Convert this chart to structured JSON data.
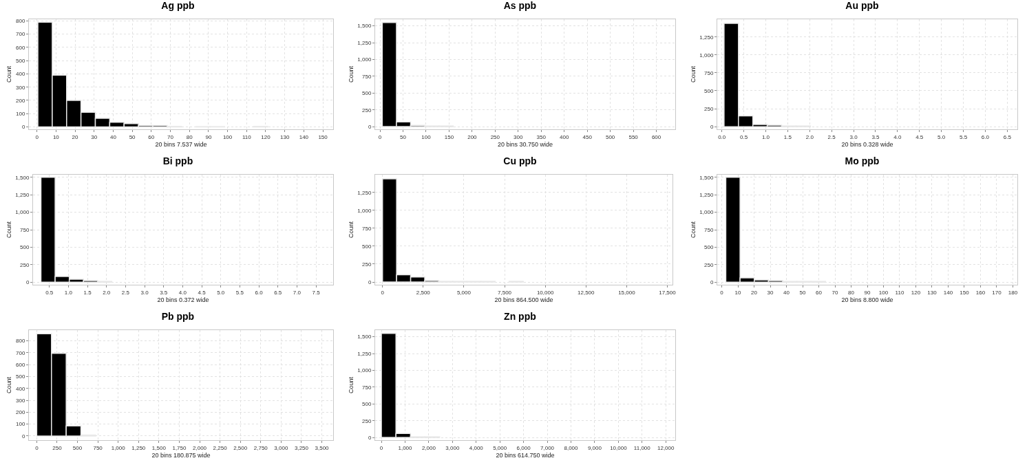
{
  "chart_data": [
    {
      "type": "histogram",
      "title": "Ag ppb",
      "xlabel": "20 bins 7.537 wide",
      "ylabel": "Count",
      "color": "#000000",
      "grid": true,
      "bins": [
        0.5,
        8.037,
        15.574,
        23.111,
        30.648,
        38.185,
        45.722,
        53.259,
        60.796,
        68.333,
        75.87,
        83.407,
        90.944,
        98.481,
        106.018,
        113.555,
        121.092,
        128.629,
        136.166,
        143.703,
        151.24
      ],
      "values": [
        790,
        390,
        200,
        110,
        65,
        35,
        25,
        10,
        10,
        3,
        0,
        2,
        2,
        0,
        0,
        3,
        0,
        0,
        0,
        0
      ],
      "xlim": [
        -4.2,
        155.4
      ],
      "ylim": [
        -18,
        812
      ],
      "xticks": [
        0,
        10,
        20,
        30,
        40,
        50,
        60,
        70,
        80,
        90,
        100,
        110,
        120,
        130,
        140,
        150
      ],
      "yticks": [
        0,
        100,
        200,
        300,
        400,
        500,
        600,
        700,
        800
      ]
    },
    {
      "type": "histogram",
      "title": "As ppb",
      "xlabel": "20 bins 30.750 wide",
      "ylabel": "Count",
      "color": "#000000",
      "grid": true,
      "bins": [
        5,
        35.75,
        66.5,
        97.25,
        128,
        158.75,
        189.5,
        220.25,
        251,
        281.75,
        312.5,
        343.25,
        374,
        404.75,
        435.5,
        466.25,
        497,
        527.75,
        558.5,
        589.25,
        620
      ],
      "values": [
        1550,
        70,
        20,
        10,
        10,
        0,
        0,
        0,
        0,
        0,
        0,
        0,
        0,
        0,
        0,
        0,
        0,
        0,
        0,
        0
      ],
      "xlim": [
        -10.5,
        641
      ],
      "ylim": [
        -40,
        1599
      ],
      "xticks": [
        0,
        50,
        100,
        150,
        200,
        250,
        300,
        350,
        400,
        450,
        500,
        550,
        600
      ],
      "yticks": [
        0,
        250,
        500,
        750,
        {
          "value": 1000,
          "label": "1,000"
        },
        {
          "value": 1250,
          "label": "1,250"
        },
        {
          "value": 1500,
          "label": "1,500"
        }
      ]
    },
    {
      "type": "histogram",
      "title": "Au ppb",
      "xlabel": "20 bins 0.328 wide",
      "ylabel": "Count",
      "color": "#000000",
      "grid": true,
      "bins": [
        0.05,
        0.378,
        0.706,
        1.034,
        1.362,
        1.69,
        2.018,
        2.346,
        2.674,
        3.002,
        3.33,
        3.658,
        3.986,
        4.314,
        4.642,
        4.97,
        5.298,
        5.626,
        5.954,
        6.282,
        6.61
      ],
      "values": [
        1440,
        150,
        30,
        20,
        10,
        10,
        0,
        0,
        0,
        0,
        0,
        0,
        0,
        0,
        0,
        0,
        0,
        0,
        0,
        0
      ],
      "xlim": [
        -0.105,
        6.73
      ],
      "ylim": [
        -37,
        1497
      ],
      "xticks": [
        {
          "value": 0,
          "label": "0.0"
        },
        0.5,
        {
          "value": 1,
          "label": "1.0"
        },
        1.5,
        {
          "value": 2,
          "label": "2.0"
        },
        2.5,
        {
          "value": 3,
          "label": "3.0"
        },
        3.5,
        {
          "value": 4,
          "label": "4.0"
        },
        4.5,
        {
          "value": 5,
          "label": "5.0"
        },
        5.5,
        {
          "value": 6,
          "label": "6.0"
        },
        6.5
      ],
      "yticks": [
        0,
        250,
        500,
        750,
        {
          "value": 1000,
          "label": "1,000"
        },
        {
          "value": 1250,
          "label": "1,250"
        }
      ]
    },
    {
      "type": "histogram",
      "title": "Bi ppb",
      "xlabel": "20 bins 0.372 wide",
      "ylabel": "Count",
      "color": "#000000",
      "grid": true,
      "bins": [
        0.28,
        0.652,
        1.024,
        1.396,
        1.768,
        2.14,
        2.512,
        2.884,
        3.256,
        3.628,
        4,
        4.372,
        4.744,
        5.116,
        5.488,
        5.86,
        6.232,
        6.604,
        6.976,
        7.348,
        7.72
      ],
      "values": [
        1500,
        80,
        40,
        20,
        10,
        0,
        0,
        0,
        0,
        0,
        0,
        0,
        0,
        0,
        0,
        0,
        0,
        0,
        0,
        0
      ],
      "xlim": [
        0.072,
        7.95
      ],
      "ylim": [
        -38,
        1538
      ],
      "xticks": [
        0.5,
        {
          "value": 1,
          "label": "1.0"
        },
        1.5,
        {
          "value": 2,
          "label": "2.0"
        },
        2.5,
        {
          "value": 3,
          "label": "3.0"
        },
        3.5,
        {
          "value": 4,
          "label": "4.0"
        },
        4.5,
        {
          "value": 5,
          "label": "5.0"
        },
        5.5,
        {
          "value": 6,
          "label": "6.0"
        },
        6.5,
        {
          "value": 7,
          "label": "7.0"
        },
        7.5
      ],
      "yticks": [
        0,
        250,
        500,
        750,
        {
          "value": 1000,
          "label": "1,000"
        },
        {
          "value": 1250,
          "label": "1,250"
        },
        {
          "value": 1500,
          "label": "1,500"
        }
      ]
    },
    {
      "type": "histogram",
      "title": "Cu ppb",
      "xlabel": "20 bins 864.500 wide",
      "ylabel": "Count",
      "color": "#000000",
      "grid": true,
      "bins": [
        0,
        864.5,
        1729,
        2593.5,
        3458,
        4322.5,
        5187,
        6051.5,
        6916,
        7780.5,
        8645,
        9509.5,
        10374,
        11238.5,
        12103,
        12967.5,
        13832,
        14696.5,
        15561,
        16425.5,
        17290
      ],
      "values": [
        1440,
        100,
        70,
        20,
        10,
        10,
        10,
        10,
        0,
        10,
        0,
        0,
        0,
        0,
        0,
        0,
        0,
        0,
        0,
        0
      ],
      "xlim": [
        -453,
        17818
      ],
      "ylim": [
        -38,
        1497
      ],
      "xticks": [
        0,
        {
          "value": 2500,
          "label": "2,500"
        },
        {
          "value": 5000,
          "label": "5,000"
        },
        {
          "value": 7500,
          "label": "7,500"
        },
        {
          "value": 10000,
          "label": "10,000"
        },
        {
          "value": 12500,
          "label": "12,500"
        },
        {
          "value": 15000,
          "label": "15,000"
        },
        {
          "value": 17500,
          "label": "17,500"
        }
      ],
      "yticks": [
        0,
        250,
        500,
        750,
        {
          "value": 1000,
          "label": "1,000"
        },
        {
          "value": 1250,
          "label": "1,250"
        }
      ]
    },
    {
      "type": "histogram",
      "title": "Mo ppb",
      "xlabel": "20 bins 8.800 wide",
      "ylabel": "Count",
      "color": "#000000",
      "grid": true,
      "bins": [
        2.5,
        11.3,
        20.1,
        28.9,
        37.7,
        46.5,
        55.3,
        64.1,
        72.9,
        81.7,
        90.5,
        99.3,
        108.1,
        116.9,
        125.7,
        134.5,
        143.3,
        152.1,
        160.9,
        169.7,
        178.5
      ],
      "values": [
        1500,
        60,
        30,
        20,
        10,
        10,
        10,
        0,
        0,
        0,
        0,
        0,
        0,
        0,
        0,
        0,
        0,
        0,
        0,
        0
      ],
      "xlim": [
        -2.8,
        182.8
      ],
      "ylim": [
        -38,
        1538
      ],
      "xticks": [
        0,
        10,
        20,
        30,
        40,
        50,
        60,
        70,
        80,
        90,
        100,
        110,
        120,
        130,
        140,
        150,
        160,
        170,
        180
      ],
      "yticks": [
        0,
        250,
        500,
        750,
        {
          "value": 1000,
          "label": "1,000"
        },
        {
          "value": 1250,
          "label": "1,250"
        },
        {
          "value": 1500,
          "label": "1,500"
        }
      ]
    },
    {
      "type": "histogram",
      "title": "Pb ppb",
      "xlabel": "20 bins 180.875 wide",
      "ylabel": "Count",
      "color": "#000000",
      "grid": true,
      "bins": [
        0,
        180.875,
        361.75,
        542.625,
        723.5,
        904.375,
        1085.25,
        1266.125,
        1447,
        1627.875,
        1808.75,
        1989.625,
        2170.5,
        2351.375,
        2532.25,
        2713.125,
        2894,
        3074.875,
        3255.75,
        3436.625,
        3617.5
      ],
      "values": [
        860,
        695,
        85,
        8,
        0,
        0,
        0,
        0,
        0,
        0,
        0,
        0,
        0,
        0,
        0,
        0,
        0,
        0,
        0,
        0
      ],
      "xlim": [
        -96,
        3639
      ],
      "ylim": [
        -35,
        890
      ],
      "xticks": [
        0,
        250,
        500,
        750,
        {
          "value": 1000,
          "label": "1,000"
        },
        {
          "value": 1250,
          "label": "1,250"
        },
        {
          "value": 1500,
          "label": "1,500"
        },
        {
          "value": 1750,
          "label": "1,750"
        },
        {
          "value": 2000,
          "label": "2,000"
        },
        {
          "value": 2250,
          "label": "2,250"
        },
        {
          "value": 2500,
          "label": "2,500"
        },
        {
          "value": 2750,
          "label": "2,750"
        },
        {
          "value": 3000,
          "label": "3,000"
        },
        {
          "value": 3250,
          "label": "3,250"
        },
        {
          "value": 3500,
          "label": "3,500"
        }
      ],
      "yticks": [
        0,
        100,
        200,
        300,
        400,
        500,
        600,
        700,
        800
      ]
    },
    {
      "type": "histogram",
      "title": "Zn ppb",
      "xlabel": "20 bins 614.750 wide",
      "ylabel": "Count",
      "color": "#000000",
      "grid": true,
      "bins": [
        0,
        614.75,
        1229.5,
        1844.25,
        2459,
        3073.75,
        3688.5,
        4303.25,
        4918,
        5532.75,
        6147.5,
        6762.25,
        7377,
        7991.75,
        8606.5,
        9221.25,
        9836,
        10450.75,
        11065.5,
        11680.25,
        12295
      ],
      "values": [
        1550,
        60,
        10,
        10,
        0,
        0,
        0,
        0,
        0,
        0,
        0,
        0,
        0,
        0,
        0,
        0,
        0,
        0,
        0,
        0
      ],
      "xlim": [
        -263,
        12400
      ],
      "ylim": [
        -40,
        1599
      ],
      "xticks": [
        0,
        {
          "value": 1000,
          "label": "1,000"
        },
        {
          "value": 2000,
          "label": "2,000"
        },
        {
          "value": 3000,
          "label": "3,000"
        },
        {
          "value": 4000,
          "label": "4,000"
        },
        {
          "value": 5000,
          "label": "5,000"
        },
        {
          "value": 6000,
          "label": "6,000"
        },
        {
          "value": 7000,
          "label": "7,000"
        },
        {
          "value": 8000,
          "label": "8,000"
        },
        {
          "value": 9000,
          "label": "9,000"
        },
        {
          "value": 10000,
          "label": "10,000"
        },
        {
          "value": 11000,
          "label": "11,000"
        },
        {
          "value": 12000,
          "label": "12,000"
        }
      ],
      "yticks": [
        0,
        250,
        500,
        750,
        {
          "value": 1000,
          "label": "1,000"
        },
        {
          "value": 1250,
          "label": "1,250"
        },
        {
          "value": 1500,
          "label": "1,500"
        }
      ]
    }
  ]
}
